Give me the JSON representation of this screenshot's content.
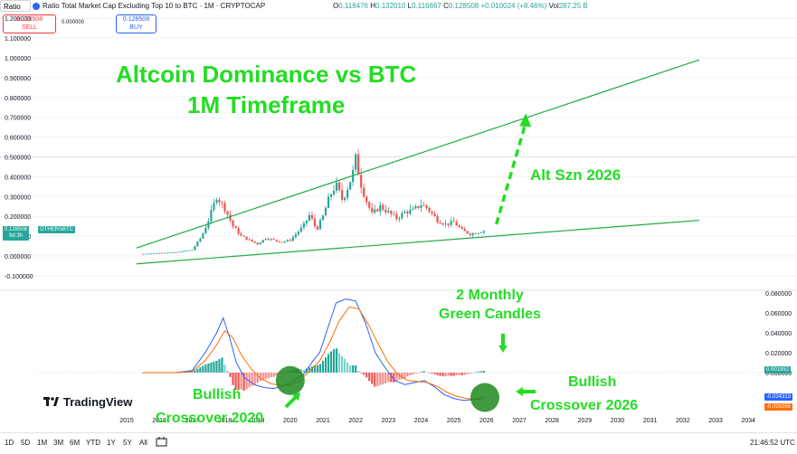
{
  "toolbar": {
    "ratio_label": "Ratio",
    "symbol": "Ratio Total Market Cap Excluding Top 10 to BTC · 1M · CRYPTOCAP",
    "ohlc": [
      {
        "k": "O",
        "v": "0.118476"
      },
      {
        "k": "H",
        "v": "0.132010"
      },
      {
        "k": "L",
        "v": "0.116667"
      },
      {
        "k": "C",
        "v": "0.128508"
      }
    ],
    "change": "+0.010024 (+8.46%)",
    "vol_label": "Vol",
    "vol_value": "287.25 B",
    "sell_price": "0.128508",
    "sell_label": "SELL",
    "spread": "0.000000",
    "buy_price": "0.128508",
    "buy_label": "BUY"
  },
  "annotations": {
    "title_line1": "Altcoin Dominance vs BTC",
    "title_line2": "1M Timeframe",
    "alt_szn": "Alt Szn 2026",
    "two_monthly_line1": "2 Monthly",
    "two_monthly_line2": "Green Candles",
    "bullish_2020_line1": "Bullish",
    "bullish_2020_line2": "Crossover 2020",
    "bullish_2026_line1": "Bullish",
    "bullish_2026_line2": "Crossover 2026"
  },
  "branding": {
    "logo_text": "TradingView"
  },
  "bottom_bar": {
    "timeframes": [
      "1D",
      "5D",
      "1M",
      "3M",
      "6M",
      "YTD",
      "1Y",
      "5Y",
      "All"
    ],
    "clock": "21:46:52 UTC"
  },
  "chart_data": [
    {
      "type": "candlestick",
      "series_label": "OTHERSBTC",
      "countdown": "9d 3h",
      "last_value": "0.128508",
      "x_ticks": [
        "2015",
        "2016",
        "2017",
        "2018",
        "2019",
        "2020",
        "2021",
        "2022",
        "2023",
        "2024",
        "2025",
        "2026",
        "2027",
        "2028",
        "2029",
        "2030",
        "2031",
        "2032",
        "2033",
        "2034"
      ],
      "y_ticks": [
        "1.200000",
        "1.100000",
        "1.000000",
        "0.900000",
        "0.800000",
        "0.700000",
        "0.600000",
        "0.500000",
        "0.400000",
        "0.300000",
        "0.200000",
        "0.100000",
        "0.000000",
        "-0.100000"
      ],
      "ylim": [
        -0.1,
        1.2
      ],
      "dotted_level": 0.5,
      "close_path": [
        [
          2015.5,
          0.01
        ],
        [
          2016.0,
          0.015
        ],
        [
          2016.5,
          0.018
        ],
        [
          2017.0,
          0.03
        ],
        [
          2017.3,
          0.1
        ],
        [
          2017.5,
          0.18
        ],
        [
          2017.75,
          0.3
        ],
        [
          2018.0,
          0.24
        ],
        [
          2018.25,
          0.15
        ],
        [
          2018.5,
          0.1
        ],
        [
          2018.75,
          0.08
        ],
        [
          2019.0,
          0.06
        ],
        [
          2019.25,
          0.09
        ],
        [
          2019.5,
          0.08
        ],
        [
          2019.75,
          0.07
        ],
        [
          2020.0,
          0.08
        ],
        [
          2020.4,
          0.15
        ],
        [
          2020.6,
          0.21
        ],
        [
          2020.8,
          0.13
        ],
        [
          2021.0,
          0.2
        ],
        [
          2021.2,
          0.3
        ],
        [
          2021.4,
          0.36
        ],
        [
          2021.6,
          0.28
        ],
        [
          2021.9,
          0.41
        ],
        [
          2022.0,
          0.49
        ],
        [
          2022.15,
          0.37
        ],
        [
          2022.3,
          0.29
        ],
        [
          2022.5,
          0.21
        ],
        [
          2022.75,
          0.25
        ],
        [
          2023.0,
          0.22
        ],
        [
          2023.25,
          0.19
        ],
        [
          2023.5,
          0.22
        ],
        [
          2023.75,
          0.23
        ],
        [
          2024.0,
          0.26
        ],
        [
          2024.2,
          0.24
        ],
        [
          2024.5,
          0.18
        ],
        [
          2024.75,
          0.16
        ],
        [
          2025.0,
          0.17
        ],
        [
          2025.25,
          0.13
        ],
        [
          2025.5,
          0.11
        ],
        [
          2025.75,
          0.12
        ],
        [
          2025.95,
          0.128508
        ]
      ],
      "trendlines": [
        {
          "name": "upper",
          "from": [
            2015.3,
            0.04
          ],
          "to": [
            2032.5,
            0.99
          ]
        },
        {
          "name": "lower",
          "from": [
            2015.3,
            -0.04
          ],
          "to": [
            2032.5,
            0.18
          ]
        }
      ],
      "projection_arrow": {
        "from": [
          2026.3,
          0.16
        ],
        "to": [
          2027.2,
          0.72
        ]
      }
    },
    {
      "type": "macd",
      "y_ticks": [
        "0.080000",
        "0.060000",
        "0.040000",
        "0.020000",
        "0.000000"
      ],
      "ylim": [
        -0.04,
        0.09
      ],
      "last_labels": [
        "0.001952",
        "-0.024313",
        "-0.026265"
      ],
      "macd_line": [
        [
          2015.5,
          0.0
        ],
        [
          2016.5,
          0.0
        ],
        [
          2017.0,
          0.002
        ],
        [
          2017.4,
          0.02
        ],
        [
          2017.75,
          0.04
        ],
        [
          2017.95,
          0.055
        ],
        [
          2018.15,
          0.035
        ],
        [
          2018.35,
          0.01
        ],
        [
          2018.6,
          -0.005
        ],
        [
          2018.9,
          -0.012
        ],
        [
          2019.2,
          -0.015
        ],
        [
          2019.5,
          -0.016
        ],
        [
          2019.8,
          -0.013
        ],
        [
          2020.1,
          -0.008
        ],
        [
          2020.4,
          -0.002
        ],
        [
          2020.7,
          0.012
        ],
        [
          2020.9,
          0.02
        ],
        [
          2021.15,
          0.045
        ],
        [
          2021.4,
          0.07
        ],
        [
          2021.7,
          0.074
        ],
        [
          2022.0,
          0.072
        ],
        [
          2022.3,
          0.05
        ],
        [
          2022.6,
          0.02
        ],
        [
          2022.9,
          0.005
        ],
        [
          2023.2,
          -0.008
        ],
        [
          2023.5,
          -0.012
        ],
        [
          2023.8,
          -0.01
        ],
        [
          2024.1,
          -0.008
        ],
        [
          2024.4,
          -0.014
        ],
        [
          2024.7,
          -0.022
        ],
        [
          2025.0,
          -0.026
        ],
        [
          2025.3,
          -0.028
        ],
        [
          2025.6,
          -0.027
        ],
        [
          2025.95,
          -0.024313
        ]
      ],
      "signal_line": [
        [
          2015.5,
          0.0
        ],
        [
          2016.5,
          0.0
        ],
        [
          2017.0,
          0.001
        ],
        [
          2017.4,
          0.012
        ],
        [
          2017.75,
          0.028
        ],
        [
          2018.0,
          0.042
        ],
        [
          2018.25,
          0.035
        ],
        [
          2018.5,
          0.018
        ],
        [
          2018.8,
          0.004
        ],
        [
          2019.1,
          -0.006
        ],
        [
          2019.4,
          -0.011
        ],
        [
          2019.7,
          -0.013
        ],
        [
          2020.0,
          -0.012
        ],
        [
          2020.3,
          -0.008
        ],
        [
          2020.6,
          0.002
        ],
        [
          2020.9,
          0.012
        ],
        [
          2021.2,
          0.03
        ],
        [
          2021.5,
          0.052
        ],
        [
          2021.8,
          0.066
        ],
        [
          2022.1,
          0.064
        ],
        [
          2022.4,
          0.048
        ],
        [
          2022.7,
          0.028
        ],
        [
          2023.0,
          0.01
        ],
        [
          2023.3,
          -0.002
        ],
        [
          2023.6,
          -0.008
        ],
        [
          2023.9,
          -0.009
        ],
        [
          2024.2,
          -0.01
        ],
        [
          2024.5,
          -0.014
        ],
        [
          2024.8,
          -0.02
        ],
        [
          2025.1,
          -0.024
        ],
        [
          2025.4,
          -0.026
        ],
        [
          2025.7,
          -0.027
        ],
        [
          2025.95,
          -0.026265
        ]
      ],
      "last_histogram": 0.001952
    }
  ],
  "colors": {
    "up": "#26a69a",
    "down": "#ef5350",
    "macd": "#2962ff",
    "signal": "#ff6d00",
    "annotation": "#22dd22",
    "trend": "#22aa44",
    "hist_up": "#7ed3c9",
    "hist_down": "#f28b8b"
  }
}
